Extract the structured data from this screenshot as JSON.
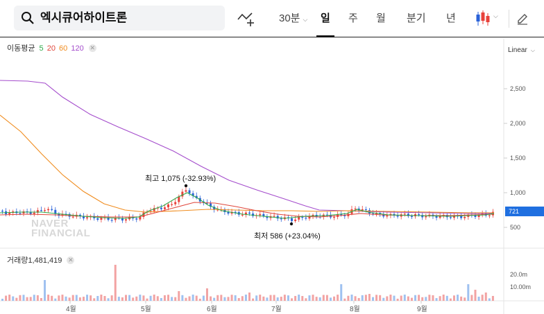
{
  "search": {
    "stock_name": "엑시큐어하이트론"
  },
  "toolbar": {
    "interval_30m": "30분",
    "day": "일",
    "week": "주",
    "month": "월",
    "quarter": "분기",
    "year": "년"
  },
  "ma_panel": {
    "title": "이동평균",
    "ma5": "5",
    "ma20": "20",
    "ma60": "60",
    "ma120": "120",
    "colors": {
      "ma5": "#2eaa4a",
      "ma20": "#e0463c",
      "ma60": "#f08c1e",
      "ma120": "#a44ccc"
    }
  },
  "scale": {
    "label": "Linear"
  },
  "price_axis": {
    "ticks": [
      "2,500",
      "2,000",
      "1,500",
      "1,000",
      "500"
    ],
    "current": "721"
  },
  "annotations": {
    "high": "최고 1,075 (-32.93%)",
    "low": "최저 586 (+23.04%)"
  },
  "volume_panel": {
    "label": "거래량",
    "value": "1,481,419",
    "ticks": [
      "20.0m",
      "10.00m"
    ]
  },
  "months": [
    "4월",
    "5월",
    "6월",
    "7월",
    "8월",
    "9월"
  ],
  "watermark": [
    "NAVER",
    "FINANCIAL"
  ],
  "colors": {
    "up": "#e8413a",
    "down": "#2a62d8",
    "volume_up": "#f2a3a3",
    "volume_down": "#9fc1f0"
  }
}
